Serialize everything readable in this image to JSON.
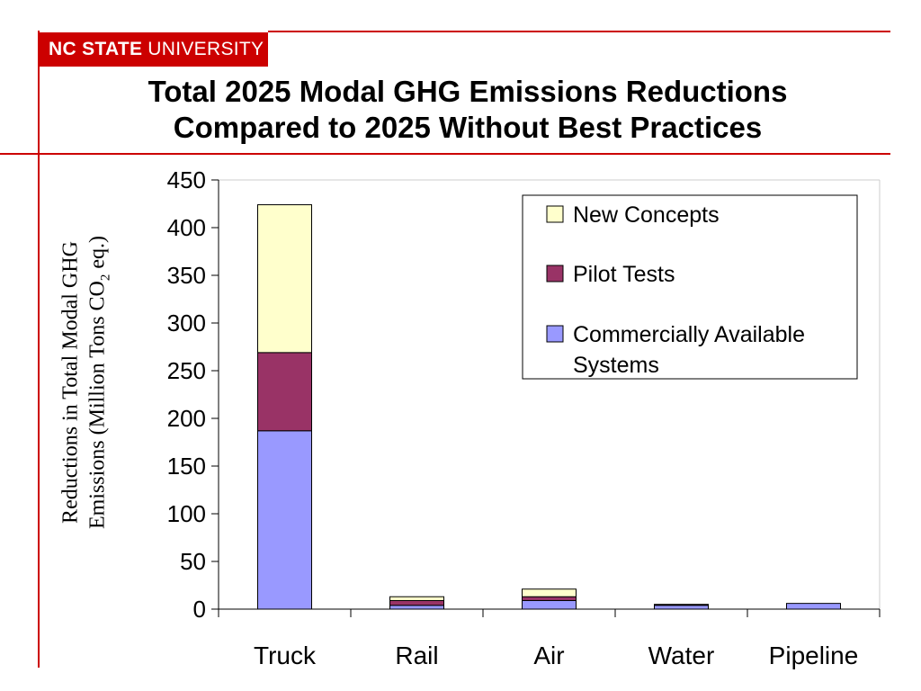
{
  "header": {
    "logo_bold": "NC STATE",
    "logo_regular": "UNIVERSITY",
    "title_line1": "Total 2025 Modal GHG Emissions Reductions",
    "title_line2": "Compared to 2025 Without Best Practices",
    "accent_color": "#cc0000"
  },
  "chart_data": {
    "type": "bar",
    "stacked": true,
    "categories": [
      "Truck",
      "Rail",
      "Air",
      "Water",
      "Pipeline"
    ],
    "series": [
      {
        "name": "Commercially Available Systems",
        "color": "#9999ff",
        "values": [
          187,
          4,
          9,
          4,
          6
        ]
      },
      {
        "name": "Pilot Tests",
        "color": "#993366",
        "values": [
          82,
          5,
          4,
          1,
          0
        ]
      },
      {
        "name": "New Concepts",
        "color": "#ffffcc",
        "values": [
          155,
          4,
          8,
          0,
          0
        ]
      }
    ],
    "ylabel_line1": "Reductions in Total Modal GHG",
    "ylabel_line2_pre": "Emissions (Million Tons CO",
    "ylabel_line2_sub": "2",
    "ylabel_line2_post": " eq.)",
    "ylim": [
      0,
      450
    ],
    "yticks": [
      0,
      50,
      100,
      150,
      200,
      250,
      300,
      350,
      400,
      450
    ],
    "legend_position": "top-right",
    "legend_order": [
      "New Concepts",
      "Pilot Tests",
      "Commercially Available Systems"
    ],
    "grid": false
  }
}
